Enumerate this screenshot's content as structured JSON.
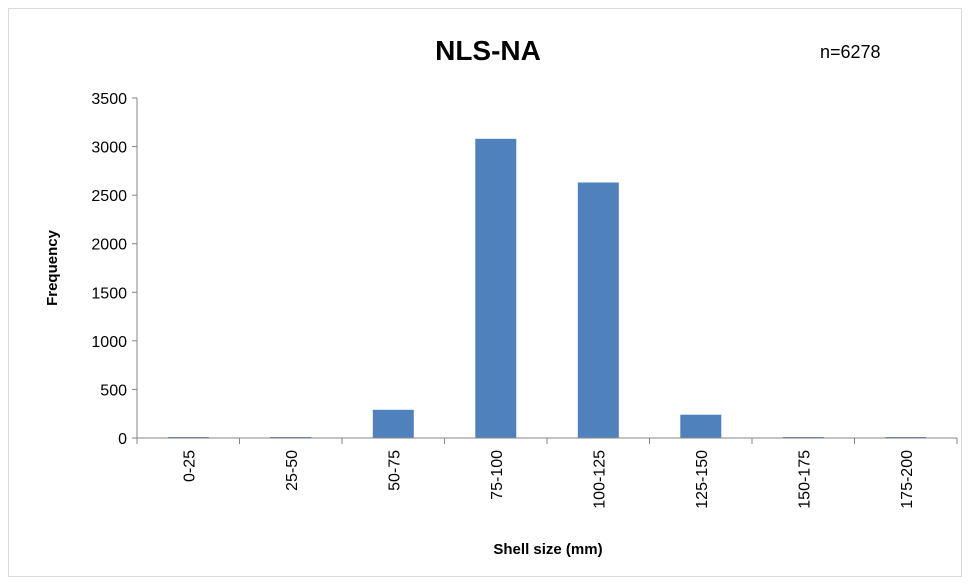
{
  "chart_data": {
    "type": "bar",
    "title": "NLS-NA",
    "annotation": "n=6278",
    "xlabel": "Shell size (mm)",
    "ylabel": "Frequency",
    "categories": [
      "0-25",
      "25-50",
      "50-75",
      "75-100",
      "100-125",
      "125-150",
      "150-175",
      "175-200"
    ],
    "values": [
      10,
      10,
      290,
      3080,
      2630,
      240,
      10,
      10
    ],
    "ylim": [
      0,
      3500
    ],
    "yticks": [
      0,
      500,
      1000,
      1500,
      2000,
      2500,
      3000,
      3500
    ],
    "ytick_labels": [
      "0",
      "500",
      "1000",
      "1500",
      "2000",
      "2500",
      "3000",
      "3500"
    ],
    "grid": false,
    "legend": "none",
    "bar_color": "#4f81bd",
    "axis_color": "#868686"
  }
}
